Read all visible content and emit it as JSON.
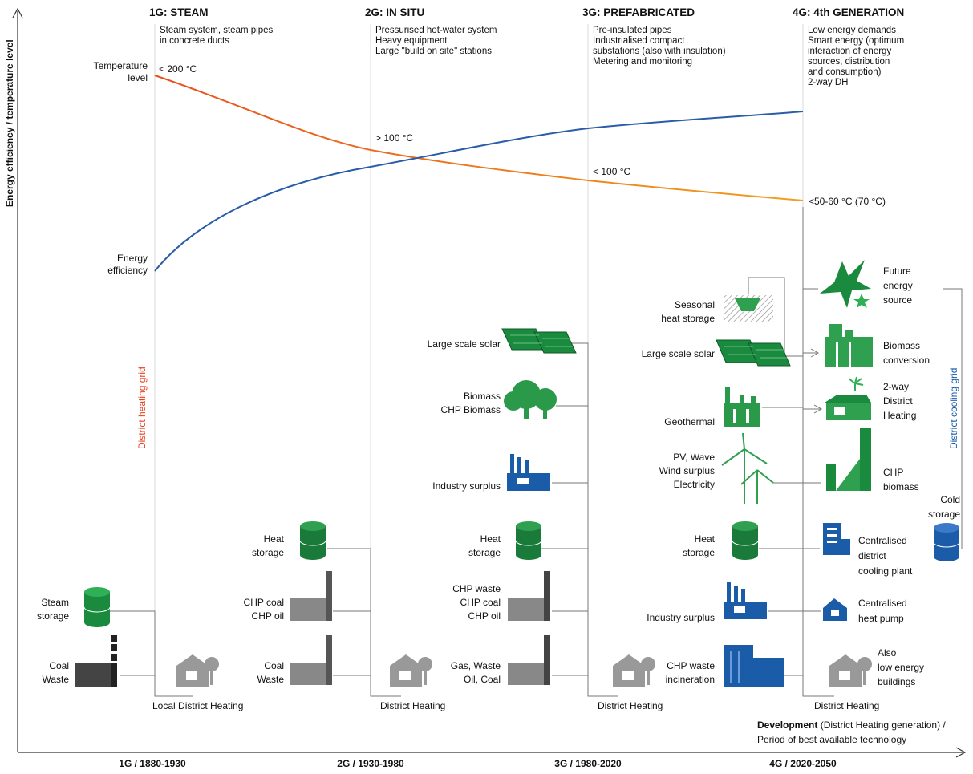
{
  "axes": {
    "y_label": "Energy efficiency / temperature level",
    "x_label_bold": "Development",
    "x_label_rest": " (District Heating generation) /",
    "x_label_line2": "Period of best available technology"
  },
  "periods": [
    "1G / 1880-1930",
    "2G / 1930-1980",
    "3G / 1980-2020",
    "4G / 2020-2050"
  ],
  "generations": [
    {
      "title": "1G: STEAM",
      "lines": [
        "Steam system, steam pipes",
        "in concrete ducts"
      ]
    },
    {
      "title": "2G: IN SITU",
      "lines": [
        "Pressurised hot-water system",
        "Heavy equipment",
        "Large \"build on site\" stations"
      ]
    },
    {
      "title": "3G: PREFABRICATED",
      "lines": [
        "Pre-insulated pipes",
        "Industrialised compact",
        "substations (also with insulation)",
        "Metering and monitoring"
      ]
    },
    {
      "title": "4G: 4th GENERATION",
      "lines": [
        "Low energy demands",
        "Smart energy (optimum",
        "interaction of energy",
        "sources, distribution",
        "and consumption)",
        "2-way DH"
      ]
    }
  ],
  "curves": {
    "temperature_label": [
      "Temperature",
      "level"
    ],
    "efficiency_label": [
      "Energy",
      "efficiency"
    ],
    "temperatures": [
      "< 200 °C",
      "> 100 °C",
      "< 100 °C",
      "<50-60 °C (70 °C)"
    ]
  },
  "grids": {
    "heating": "District heating grid",
    "cooling": "District cooling grid"
  },
  "gen1": {
    "sources": [
      [
        "Steam",
        "storage"
      ],
      [
        "Coal",
        "Waste"
      ]
    ],
    "consumer": "Local District Heating"
  },
  "gen2": {
    "sources": [
      [
        "Heat",
        "storage"
      ],
      [
        "CHP coal",
        "CHP oil"
      ],
      [
        "Coal",
        "Waste"
      ]
    ],
    "consumer": "District Heating"
  },
  "gen3": {
    "sources": [
      [
        "Large scale solar"
      ],
      [
        "Biomass",
        "CHP Biomass"
      ],
      [
        "Industry surplus"
      ],
      [
        "Heat",
        "storage"
      ],
      [
        "CHP waste",
        "CHP coal",
        "CHP oil"
      ],
      [
        "Gas, Waste",
        "Oil, Coal"
      ]
    ],
    "consumer": "District Heating"
  },
  "gen4": {
    "sources": [
      [
        "Seasonal",
        "heat storage"
      ],
      [
        "Large scale solar"
      ],
      [
        "Geothermal"
      ],
      [
        "PV, Wave",
        "Wind surplus",
        "Electricity"
      ],
      [
        "Heat",
        "storage"
      ],
      [
        "Industry surplus"
      ],
      [
        "CHP waste",
        "incineration"
      ]
    ],
    "right": [
      [
        "Future",
        "energy",
        "source"
      ],
      [
        "Biomass",
        "conversion"
      ],
      [
        "2-way",
        "District",
        "Heating"
      ],
      [
        "CHP",
        "biomass"
      ],
      [
        "Centralised",
        "district",
        "cooling plant"
      ],
      [
        "Centralised",
        "heat pump"
      ],
      [
        "Also",
        "low energy",
        "buildings"
      ]
    ],
    "cold_storage": [
      "Cold",
      "storage"
    ],
    "consumer": "District Heating"
  },
  "colors": {
    "green": "#2e9e4f",
    "dark_green": "#1a7a3a",
    "blue": "#1a5ca8",
    "orange": "#e8641e",
    "curve_blue": "#2a5ca8",
    "grey": "#888888",
    "red": "#e8401e"
  },
  "icons": [
    "storage-tank-icon",
    "factory-chimney-icon",
    "house-tree-icon",
    "solar-panel-icon",
    "tree-icon",
    "industry-icon",
    "wind-turbine-icon",
    "star-icon",
    "seasonal-storage-icon",
    "geothermal-icon"
  ]
}
